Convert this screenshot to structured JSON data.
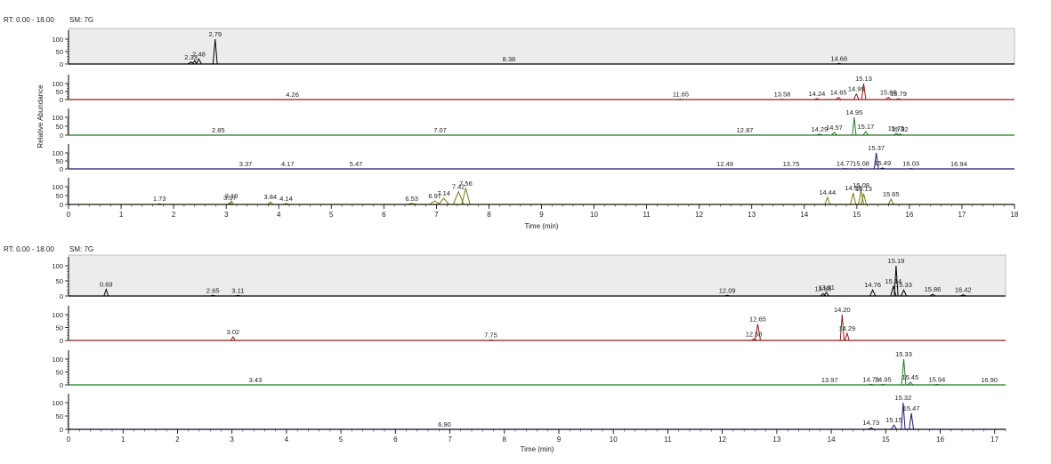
{
  "chart_data": [
    {
      "type": "line",
      "header_rt": "RT: 0.00 - 18.00",
      "header_sm": "SM: 7G",
      "ylabel": "Relative Abundance",
      "xlabel": "Time (min)",
      "xlim": [
        0,
        18
      ],
      "xticks": [
        "0",
        "1",
        "2",
        "3",
        "4",
        "5",
        "6",
        "7",
        "8",
        "9",
        "10",
        "11",
        "12",
        "13",
        "14",
        "15",
        "16",
        "17",
        "18"
      ],
      "yticks": [
        "0",
        "50",
        "100"
      ],
      "series": [
        {
          "color": "#000000",
          "highlighted": true,
          "peaks": [
            {
              "rt": 2.33,
              "label": "2.33",
              "h": 8,
              "w": 0.06
            },
            {
              "rt": 2.4,
              "label": "",
              "h": 14,
              "w": 0.04
            },
            {
              "rt": 2.48,
              "label": "2.48",
              "h": 20,
              "w": 0.05
            },
            {
              "rt": 2.79,
              "label": "2.79",
              "h": 100,
              "w": 0.04
            },
            {
              "rt": 8.38,
              "label": "8.38",
              "h": 0,
              "w": 0.05
            },
            {
              "rt": 14.66,
              "label": "14.66",
              "h": 2,
              "w": 0.05
            }
          ]
        },
        {
          "color": "#8b1c1c",
          "highlighted": false,
          "peaks": [
            {
              "rt": 4.26,
              "label": "4.26",
              "h": 0,
              "w": 0.05
            },
            {
              "rt": 11.65,
              "label": "11.65",
              "h": 2,
              "w": 0.05
            },
            {
              "rt": 13.58,
              "label": "13.58",
              "h": 2,
              "w": 0.05
            },
            {
              "rt": 14.24,
              "label": "14.24",
              "h": 6,
              "w": 0.05
            },
            {
              "rt": 14.65,
              "label": "14.65",
              "h": 14,
              "w": 0.05
            },
            {
              "rt": 14.99,
              "label": "14.99",
              "h": 35,
              "w": 0.05
            },
            {
              "rt": 15.13,
              "label": "15.13",
              "h": 100,
              "w": 0.04
            },
            {
              "rt": 15.6,
              "label": "15.60",
              "h": 14,
              "w": 0.05
            },
            {
              "rt": 15.79,
              "label": "15.79",
              "h": 6,
              "w": 0.05
            }
          ]
        },
        {
          "color": "#1f7a1f",
          "highlighted": false,
          "peaks": [
            {
              "rt": 2.85,
              "label": "2.85",
              "h": 0,
              "w": 0.05
            },
            {
              "rt": 7.07,
              "label": "7.07",
              "h": 0,
              "w": 0.05
            },
            {
              "rt": 12.87,
              "label": "12.87",
              "h": 0,
              "w": 0.05
            },
            {
              "rt": 14.29,
              "label": "14.29",
              "h": 6,
              "w": 0.05
            },
            {
              "rt": 14.57,
              "label": "14.57",
              "h": 16,
              "w": 0.05
            },
            {
              "rt": 14.95,
              "label": "14.95",
              "h": 100,
              "w": 0.035
            },
            {
              "rt": 15.17,
              "label": "15.17",
              "h": 20,
              "w": 0.05
            },
            {
              "rt": 15.75,
              "label": "15.75",
              "h": 10,
              "w": 0.05
            },
            {
              "rt": 15.82,
              "label": "15.82",
              "h": 6,
              "w": 0.05
            }
          ]
        },
        {
          "color": "#1a1a6e",
          "highlighted": false,
          "peaks": [
            {
              "rt": 3.37,
              "label": "3.37",
              "h": 0,
              "w": 0.05
            },
            {
              "rt": 4.17,
              "label": "4.17",
              "h": 0,
              "w": 0.05
            },
            {
              "rt": 5.47,
              "label": "5.47",
              "h": 0,
              "w": 0.05
            },
            {
              "rt": 12.49,
              "label": "12.49",
              "h": 0,
              "w": 0.05
            },
            {
              "rt": 13.75,
              "label": "13.75",
              "h": 0,
              "w": 0.05
            },
            {
              "rt": 14.77,
              "label": "14.77",
              "h": 2,
              "w": 0.05
            },
            {
              "rt": 15.08,
              "label": "15.08",
              "h": 2,
              "w": 0.05
            },
            {
              "rt": 15.37,
              "label": "15.37",
              "h": 100,
              "w": 0.04
            },
            {
              "rt": 15.49,
              "label": "15.49",
              "h": 6,
              "w": 0.05
            },
            {
              "rt": 16.03,
              "label": "16.03",
              "h": 2,
              "w": 0.05
            },
            {
              "rt": 16.94,
              "label": "16.94",
              "h": 0,
              "w": 0.05
            }
          ]
        },
        {
          "color": "#7a7a10",
          "highlighted": false,
          "peaks": [
            {
              "rt": 1.73,
              "label": "1.73",
              "h": 4,
              "w": 0.05
            },
            {
              "rt": 3.07,
              "label": "3.07",
              "h": 10,
              "w": 0.05
            },
            {
              "rt": 3.1,
              "label": "3.10",
              "h": 20,
              "w": 0.04
            },
            {
              "rt": 3.84,
              "label": "3.84",
              "h": 14,
              "w": 0.05
            },
            {
              "rt": 4.14,
              "label": "4.14",
              "h": 6,
              "w": 0.05
            },
            {
              "rt": 6.53,
              "label": "6.53",
              "h": 6,
              "w": 0.1
            },
            {
              "rt": 6.97,
              "label": "6.97",
              "h": 20,
              "w": 0.1
            },
            {
              "rt": 7.14,
              "label": "7.14",
              "h": 35,
              "w": 0.1
            },
            {
              "rt": 7.42,
              "label": "7.42",
              "h": 72,
              "w": 0.1
            },
            {
              "rt": 7.56,
              "label": "7.56",
              "h": 90,
              "w": 0.08
            },
            {
              "rt": 14.44,
              "label": "14.44",
              "h": 40,
              "w": 0.05
            },
            {
              "rt": 14.93,
              "label": "14.93",
              "h": 65,
              "w": 0.05
            },
            {
              "rt": 15.08,
              "label": "15.08",
              "h": 80,
              "w": 0.05
            },
            {
              "rt": 15.13,
              "label": "15.13",
              "h": 60,
              "w": 0.05
            },
            {
              "rt": 15.65,
              "label": "15.65",
              "h": 30,
              "w": 0.05
            }
          ]
        }
      ]
    },
    {
      "type": "line",
      "header_rt": "RT: 0.00 - 18.00",
      "header_sm": "SM: 7G",
      "ylabel": "",
      "xlabel": "Time (min)",
      "xlim": [
        0,
        17.2
      ],
      "xticks": [
        "0",
        "1",
        "2",
        "3",
        "4",
        "5",
        "6",
        "7",
        "8",
        "9",
        "10",
        "11",
        "12",
        "13",
        "14",
        "15",
        "16",
        "17"
      ],
      "yticks": [
        "0",
        "50",
        "100"
      ],
      "series": [
        {
          "color": "#000000",
          "highlighted": true,
          "peaks": [
            {
              "rt": 0.69,
              "label": "0.69",
              "h": 22,
              "w": 0.04
            },
            {
              "rt": 2.65,
              "label": "2.65",
              "h": 2,
              "w": 0.05
            },
            {
              "rt": 3.11,
              "label": "3.11",
              "h": 2,
              "w": 0.05
            },
            {
              "rt": 12.09,
              "label": "12.09",
              "h": 2,
              "w": 0.05
            },
            {
              "rt": 13.85,
              "label": "13.85",
              "h": 8,
              "w": 0.05
            },
            {
              "rt": 13.91,
              "label": "13.91",
              "h": 12,
              "w": 0.05
            },
            {
              "rt": 14.76,
              "label": "14.76",
              "h": 20,
              "w": 0.05
            },
            {
              "rt": 15.14,
              "label": "15.14",
              "h": 32,
              "w": 0.05
            },
            {
              "rt": 15.19,
              "label": "15.19",
              "h": 100,
              "w": 0.035
            },
            {
              "rt": 15.33,
              "label": "15.33",
              "h": 20,
              "w": 0.05
            },
            {
              "rt": 15.86,
              "label": "15.86",
              "h": 6,
              "w": 0.05
            },
            {
              "rt": 16.42,
              "label": "16.42",
              "h": 4,
              "w": 0.05
            }
          ]
        },
        {
          "color": "#8b1c1c",
          "highlighted": false,
          "peaks": [
            {
              "rt": 3.02,
              "label": "3.02",
              "h": 14,
              "w": 0.04
            },
            {
              "rt": 7.75,
              "label": "7.75",
              "h": 2,
              "w": 0.05
            },
            {
              "rt": 12.58,
              "label": "12.58",
              "h": 6,
              "w": 0.05
            },
            {
              "rt": 12.65,
              "label": "12.65",
              "h": 64,
              "w": 0.05
            },
            {
              "rt": 14.2,
              "label": "14.20",
              "h": 100,
              "w": 0.035
            },
            {
              "rt": 14.29,
              "label": "14.29",
              "h": 28,
              "w": 0.04
            }
          ]
        },
        {
          "color": "#1f7a1f",
          "highlighted": false,
          "peaks": [
            {
              "rt": 3.43,
              "label": "3.43",
              "h": 0,
              "w": 0.05
            },
            {
              "rt": 13.97,
              "label": "13.97",
              "h": 0,
              "w": 0.05
            },
            {
              "rt": 14.73,
              "label": "14.73",
              "h": 2,
              "w": 0.05
            },
            {
              "rt": 14.95,
              "label": "14.95",
              "h": 2,
              "w": 0.05
            },
            {
              "rt": 15.33,
              "label": "15.33",
              "h": 100,
              "w": 0.04
            },
            {
              "rt": 15.45,
              "label": "15.45",
              "h": 10,
              "w": 0.05
            },
            {
              "rt": 15.94,
              "label": "15.94",
              "h": 2,
              "w": 0.05
            },
            {
              "rt": 16.9,
              "label": "16.90",
              "h": 0,
              "w": 0.05
            }
          ]
        },
        {
          "color": "#1a1a6e",
          "highlighted": false,
          "peaks": [
            {
              "rt": 6.9,
              "label": "6.90",
              "h": 0,
              "w": 0.05
            },
            {
              "rt": 14.73,
              "label": "14.73",
              "h": 6,
              "w": 0.05
            },
            {
              "rt": 15.15,
              "label": "15.15",
              "h": 16,
              "w": 0.05
            },
            {
              "rt": 15.32,
              "label": "15.32",
              "h": 100,
              "w": 0.035
            },
            {
              "rt": 15.47,
              "label": "15.47",
              "h": 60,
              "w": 0.04
            }
          ]
        }
      ]
    }
  ]
}
